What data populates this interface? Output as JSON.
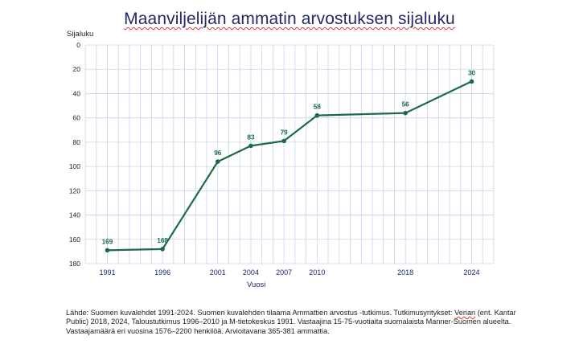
{
  "chart_data": {
    "type": "line",
    "title": "Maanviljelijän ammatin arvostuksen sijaluku",
    "ylabel": "Sijaluku",
    "xlabel": "Vuosi",
    "ylim": [
      0,
      180
    ],
    "y_reversed": true,
    "y_ticks": [
      0,
      20,
      40,
      60,
      80,
      100,
      120,
      140,
      160,
      180
    ],
    "x_range": [
      1989,
      2026
    ],
    "grid": true,
    "x": [
      1991,
      1996,
      2001,
      2004,
      2007,
      2010,
      2018,
      2024
    ],
    "series": [
      {
        "values": [
          169,
          168,
          96,
          83,
          79,
          58,
          56,
          30
        ]
      }
    ],
    "line_color": "#1b6b4a"
  },
  "source": {
    "line1_pre": "Lähde: Suomen kuvalehdet 1991-2024. Suomen kuvalehden tilaama Ammattien arvostus -tutkimus. Tutkimusyritykset: ",
    "line1_wavy": "Verian",
    "line1_post": " (ent. Kantar",
    "line2": "Public) 2018, 2024, Taloustutkimus 1996–2010 ja M-tietokeskus 1991. Vastaajina 15-75-vuotiaita suomalaista Manner-Suomen alueelta.",
    "line3": "Vastaajamäärä eri vuosina 1576–2200 henkilöä. Arvioitavana 365-381 ammattia."
  }
}
